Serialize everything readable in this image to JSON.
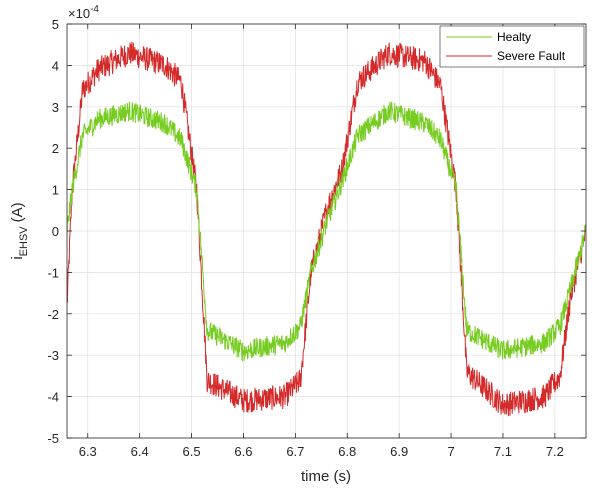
{
  "chart_data": {
    "type": "line",
    "xlabel": "time (s)",
    "ylabel": "i",
    "ylabel_subscript": "EHSV",
    "ylabel_unit": "(A)",
    "exponent_label": "×10",
    "exponent_power": "-4",
    "xlim": [
      6.26,
      7.26
    ],
    "ylim": [
      -5,
      5
    ],
    "xticks": [
      6.3,
      6.4,
      6.5,
      6.6,
      6.7,
      6.8,
      6.9,
      7.0,
      7.1,
      7.2
    ],
    "xtick_labels": [
      "6.3",
      "6.4",
      "6.5",
      "6.6",
      "6.7",
      "6.8",
      "6.9",
      "7",
      "7.1",
      "7.2"
    ],
    "yticks": [
      -5,
      -4,
      -3,
      -2,
      -1,
      0,
      1,
      2,
      3,
      4,
      5
    ],
    "ytick_labels": [
      "-5",
      "-4",
      "-3",
      "-2",
      "-1",
      "0",
      "1",
      "2",
      "3",
      "4",
      "5"
    ],
    "grid": true,
    "legend_position": "top-right",
    "period_s": 0.5,
    "series": [
      {
        "name": "Healty",
        "color": "#77cc22",
        "amplitude": 2.9,
        "noise": 0.25,
        "x": [
          6.26,
          6.27,
          6.29,
          6.32,
          6.38,
          6.45,
          6.48,
          6.51,
          6.53,
          6.6,
          6.68,
          6.71,
          6.73,
          6.76,
          6.79,
          6.82,
          6.88,
          6.95,
          6.98,
          7.01,
          7.03,
          7.1,
          7.18,
          7.21,
          7.23,
          7.26
        ],
        "values": [
          0.0,
          1.0,
          2.3,
          2.7,
          2.9,
          2.6,
          2.2,
          1.0,
          -2.4,
          -2.9,
          -2.7,
          -2.3,
          -1.0,
          0.2,
          1.2,
          2.3,
          2.9,
          2.6,
          2.2,
          1.0,
          -2.4,
          -2.9,
          -2.7,
          -2.3,
          -1.4,
          0.0
        ]
      },
      {
        "name": "Severe Fault",
        "color": "#d42a2a",
        "amplitude": 4.3,
        "noise": 0.3,
        "x": [
          6.26,
          6.27,
          6.29,
          6.32,
          6.38,
          6.45,
          6.48,
          6.51,
          6.53,
          6.6,
          6.68,
          6.71,
          6.73,
          6.76,
          6.79,
          6.82,
          6.88,
          6.95,
          6.98,
          7.01,
          7.03,
          7.1,
          7.18,
          7.21,
          7.23,
          7.26
        ],
        "values": [
          -1.8,
          1.0,
          3.4,
          3.9,
          4.3,
          4.0,
          3.6,
          1.0,
          -3.6,
          -4.1,
          -4.0,
          -3.6,
          -1.0,
          0.5,
          1.5,
          3.6,
          4.3,
          4.1,
          3.5,
          1.0,
          -3.4,
          -4.2,
          -4.0,
          -3.5,
          -1.6,
          0.0
        ]
      }
    ]
  }
}
